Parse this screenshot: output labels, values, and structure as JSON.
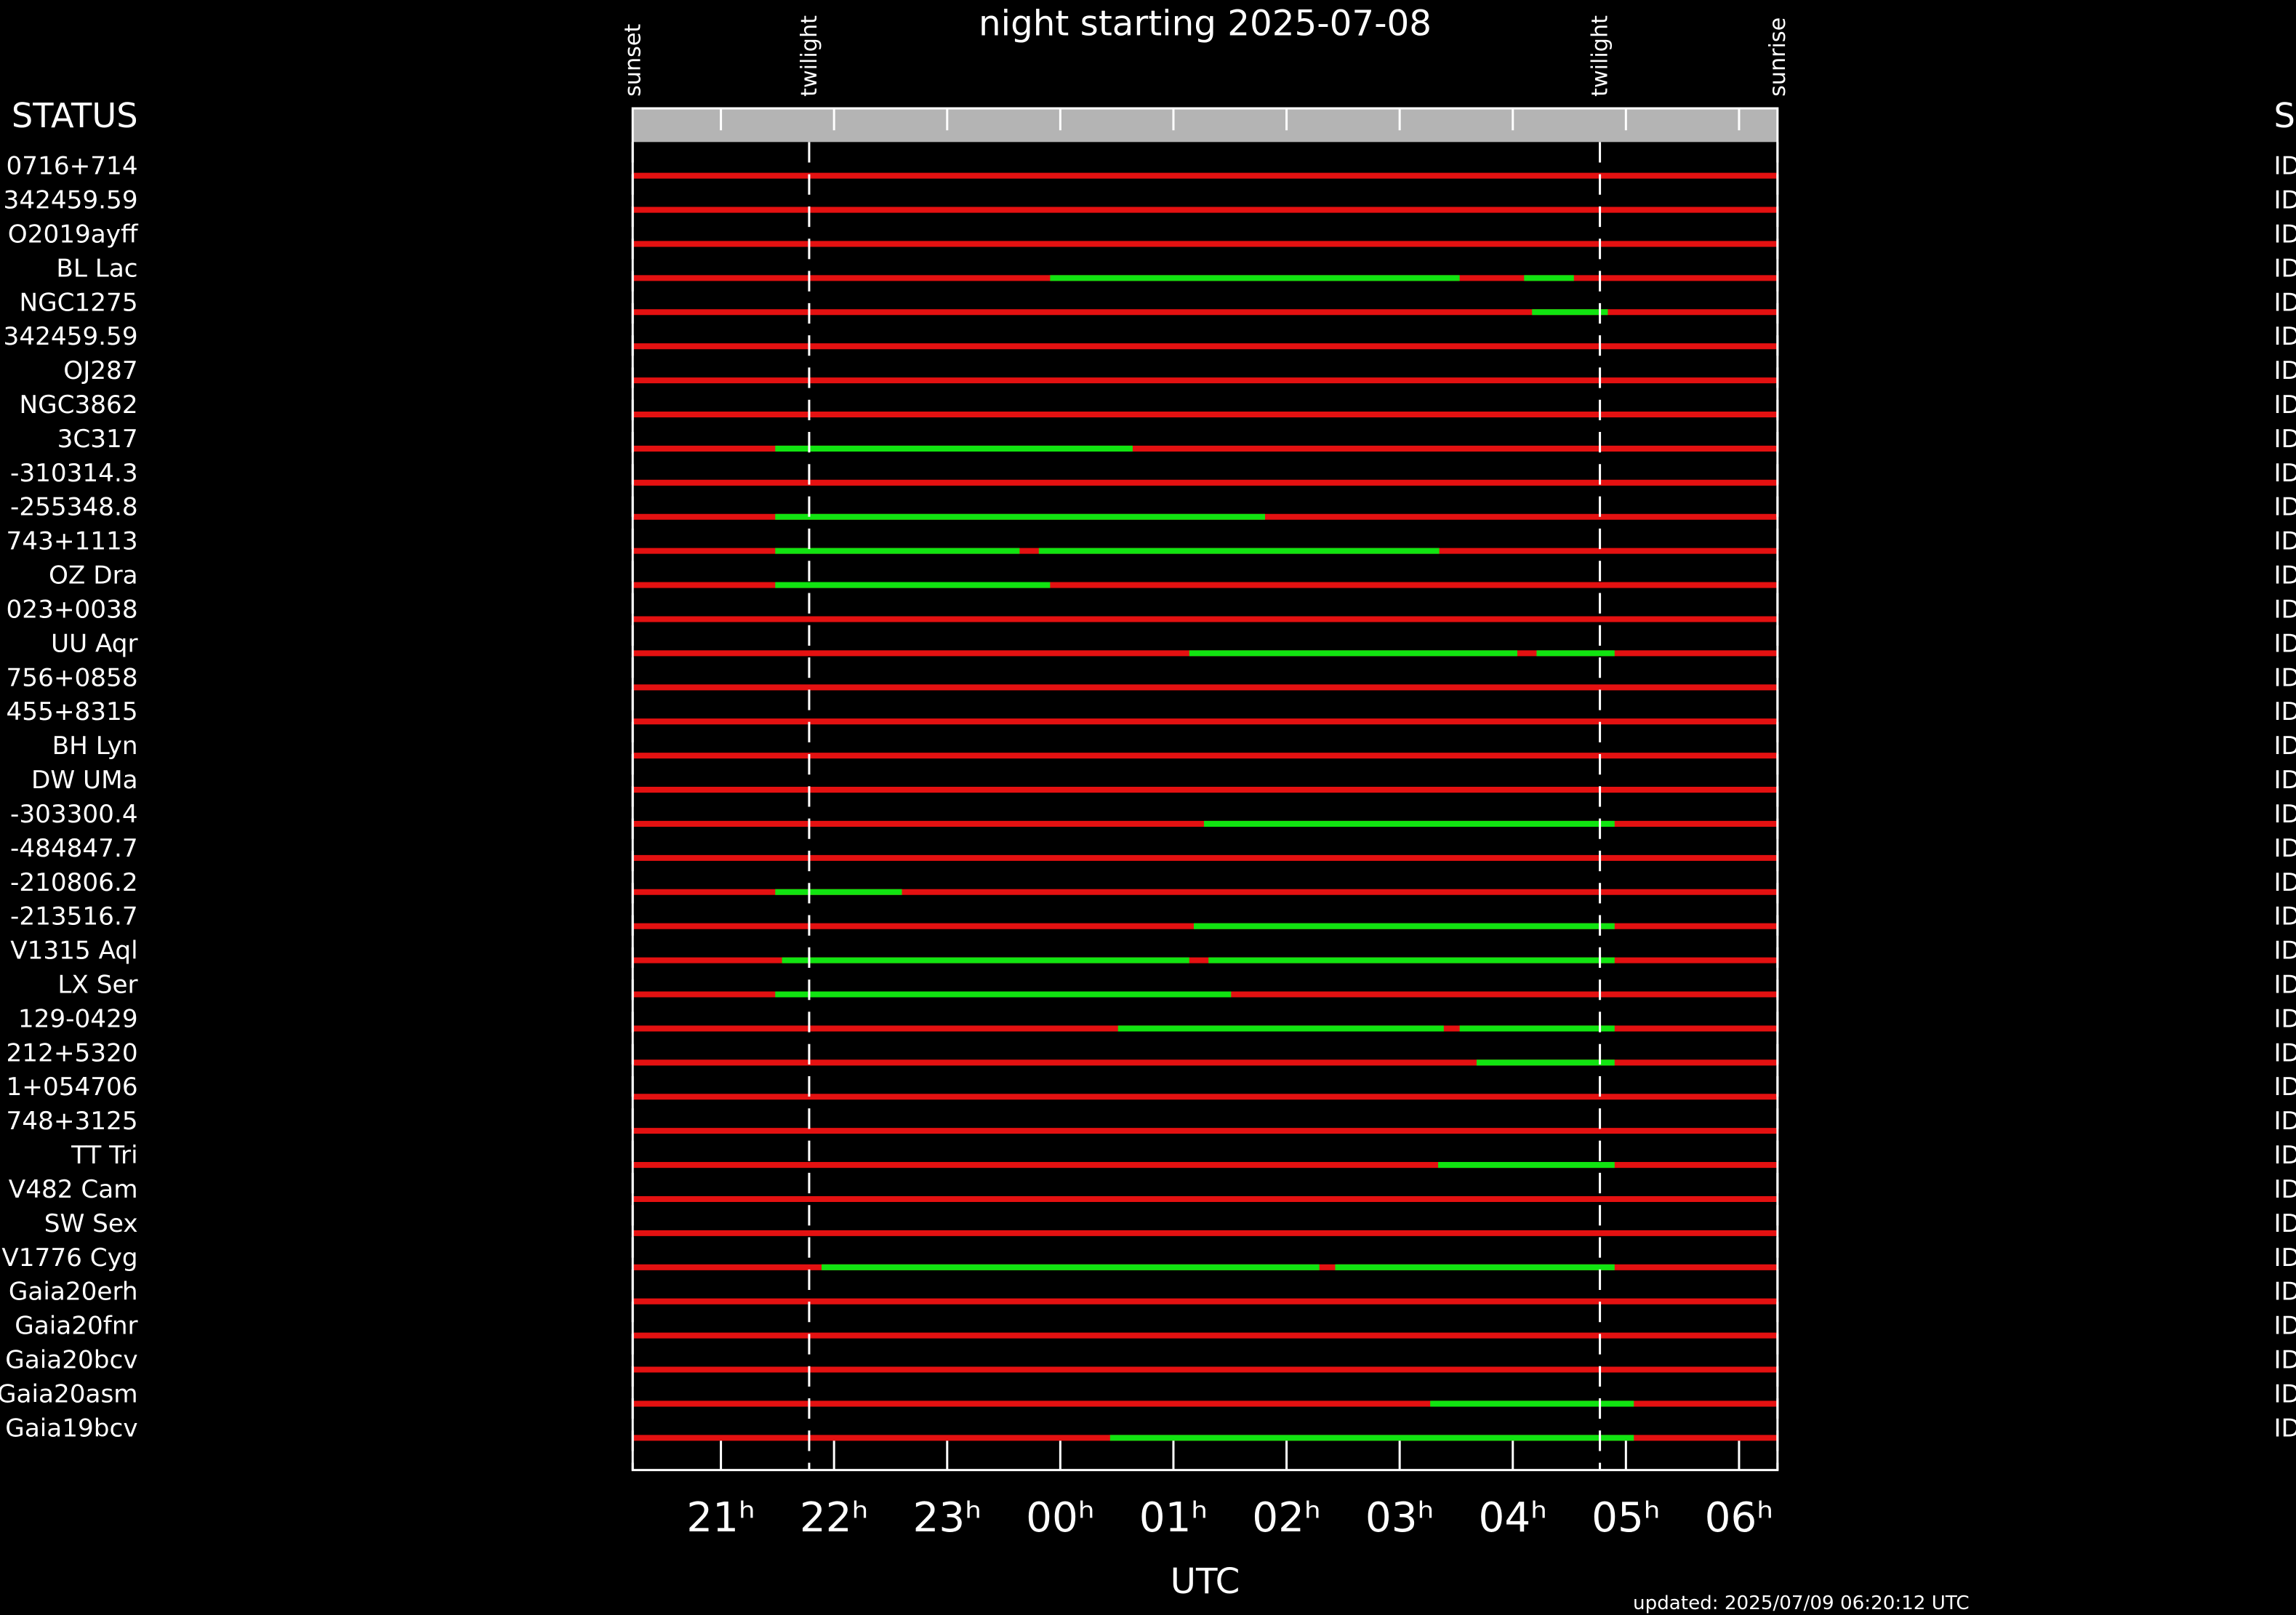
{
  "chart_data": {
    "type": "timeline",
    "title": "night starting 2025-07-08",
    "xlabel": "UTC",
    "footer": "updated: 2025/07/09 06:20:12 UTC",
    "status_header": "STATUS",
    "right_header": "S",
    "xlim": [
      20.22,
      30.34
    ],
    "xticks": [
      {
        "value": 21,
        "label": "21ʰ"
      },
      {
        "value": 22,
        "label": "22ʰ"
      },
      {
        "value": 23,
        "label": "23ʰ"
      },
      {
        "value": 24,
        "label": "00ʰ"
      },
      {
        "value": 25,
        "label": "01ʰ"
      },
      {
        "value": 26,
        "label": "02ʰ"
      },
      {
        "value": 27,
        "label": "03ʰ"
      },
      {
        "value": 28,
        "label": "04ʰ"
      },
      {
        "value": 29,
        "label": "05ʰ"
      },
      {
        "value": 30,
        "label": "06ʰ"
      }
    ],
    "events": [
      {
        "label": "sunset",
        "value": 20.22
      },
      {
        "label": "twilight",
        "value": 21.78
      },
      {
        "label": "twilight",
        "value": 28.77
      },
      {
        "label": "sunrise",
        "value": 30.34
      }
    ],
    "bar_color": "#e41111",
    "window_color": "#11e411",
    "rows": [
      {
        "label": "0716+714",
        "status": "ID",
        "windows": []
      },
      {
        "label": "342459.59",
        "status": "ID",
        "windows": []
      },
      {
        "label": "O2019ayff",
        "status": "ID",
        "windows": []
      },
      {
        "label": "BL Lac",
        "status": "ID",
        "windows": [
          [
            23.91,
            27.53
          ],
          [
            28.1,
            28.54
          ]
        ]
      },
      {
        "label": "NGC1275",
        "status": "ID",
        "windows": [
          [
            28.17,
            28.84
          ]
        ]
      },
      {
        "label": "342459.59",
        "status": "ID",
        "windows": []
      },
      {
        "label": "OJ287",
        "status": "ID",
        "windows": []
      },
      {
        "label": "NGC3862",
        "status": "ID",
        "windows": []
      },
      {
        "label": "3C317",
        "status": "ID",
        "windows": [
          [
            21.48,
            24.64
          ]
        ]
      },
      {
        "label": "-310314.3",
        "status": "ID",
        "windows": []
      },
      {
        "label": "-255348.8",
        "status": "ID",
        "windows": [
          [
            21.48,
            25.81
          ]
        ]
      },
      {
        "label": "743+1113",
        "status": "ID",
        "windows": [
          [
            21.48,
            23.64
          ],
          [
            23.81,
            27.35
          ]
        ]
      },
      {
        "label": "OZ Dra",
        "status": "ID",
        "windows": [
          [
            21.48,
            23.91
          ]
        ]
      },
      {
        "label": "023+0038",
        "status": "ID",
        "windows": []
      },
      {
        "label": "UU Aqr",
        "status": "ID",
        "windows": [
          [
            25.14,
            28.04
          ],
          [
            28.21,
            28.9
          ]
        ]
      },
      {
        "label": "756+0858",
        "status": "ID",
        "windows": []
      },
      {
        "label": "455+8315",
        "status": "ID",
        "windows": []
      },
      {
        "label": "BH Lyn",
        "status": "ID",
        "windows": []
      },
      {
        "label": "DW UMa",
        "status": "ID",
        "windows": []
      },
      {
        "label": "-303300.4",
        "status": "ID",
        "windows": [
          [
            25.27,
            28.9
          ]
        ]
      },
      {
        "label": "-484847.7",
        "status": "ID",
        "windows": []
      },
      {
        "label": "-210806.2",
        "status": "ID",
        "windows": [
          [
            21.48,
            22.6
          ]
        ]
      },
      {
        "label": "-213516.7",
        "status": "ID",
        "windows": [
          [
            25.18,
            28.9
          ]
        ]
      },
      {
        "label": "V1315 Aql",
        "status": "ID",
        "windows": [
          [
            21.54,
            25.14
          ],
          [
            25.31,
            28.9
          ]
        ]
      },
      {
        "label": "LX Ser",
        "status": "ID",
        "windows": [
          [
            21.48,
            25.51
          ]
        ]
      },
      {
        "label": "129-0429",
        "status": "ID",
        "windows": [
          [
            24.51,
            27.39
          ],
          [
            27.53,
            28.9
          ]
        ]
      },
      {
        "label": "212+5320",
        "status": "ID",
        "windows": [
          [
            27.68,
            28.9
          ]
        ]
      },
      {
        "label": "1+054706",
        "status": "ID",
        "windows": []
      },
      {
        "label": "748+3125",
        "status": "ID",
        "windows": []
      },
      {
        "label": "TT Tri",
        "status": "ID",
        "windows": [
          [
            27.34,
            28.9
          ]
        ]
      },
      {
        "label": "V482 Cam",
        "status": "ID",
        "windows": []
      },
      {
        "label": "SW Sex",
        "status": "ID",
        "windows": []
      },
      {
        "label": "V1776 Cyg",
        "status": "ID",
        "windows": [
          [
            21.89,
            26.29
          ],
          [
            26.43,
            28.9
          ]
        ]
      },
      {
        "label": "Gaia20erh",
        "status": "ID",
        "windows": []
      },
      {
        "label": "Gaia20fnr",
        "status": "ID",
        "windows": []
      },
      {
        "label": "Gaia20bcv",
        "status": "ID",
        "windows": []
      },
      {
        "label": "Gaia20asm",
        "status": "ID",
        "windows": [
          [
            27.27,
            29.07
          ]
        ]
      },
      {
        "label": "Gaia19bcv",
        "status": "ID",
        "windows": [
          [
            24.44,
            29.07
          ]
        ]
      }
    ]
  }
}
